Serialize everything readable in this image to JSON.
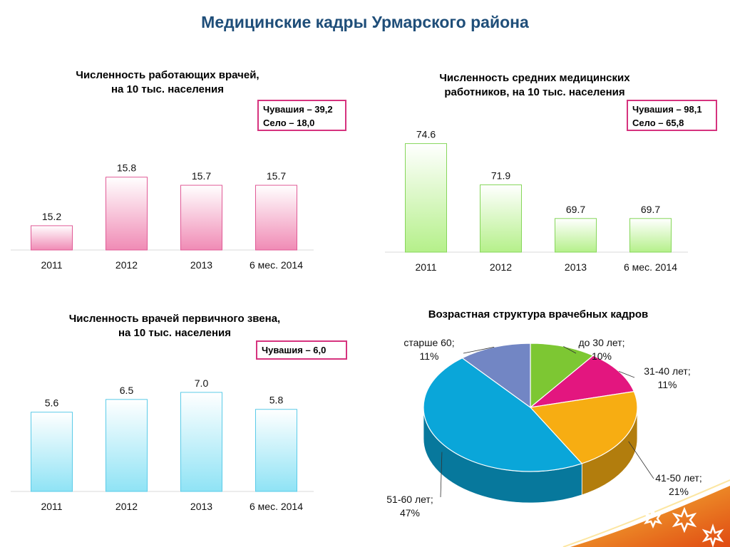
{
  "slide": {
    "title": "Медицинские кадры Урмарского района"
  },
  "colors": {
    "title": "#1f4e79",
    "pink_bar": "#f08bb5",
    "green_bar": "#b5f08a",
    "blue_bar": "#8fe3f5",
    "callout_border": "#d6337e",
    "swoosh": "#e87a1a"
  },
  "charts": {
    "doctors": {
      "title_line1": "Численность работающих врачей,",
      "title_line2": "на 10 тыс. населения",
      "callout_line1": "Чувашия – 39,2",
      "callout_line2": "Село – 18,0"
    },
    "nurses": {
      "title_line1": "Численность средних медицинских",
      "title_line2": "работников, на 10 тыс. населения",
      "callout_line1": "Чувашия – 98,1",
      "callout_line2": "Село – 65,8"
    },
    "primary": {
      "title_line1": "Численность врачей первичного звена,",
      "title_line2": "на 10 тыс. населения",
      "callout_line1": "Чувашия – 6,0"
    },
    "age": {
      "title": "Возрастная структура врачебных кадров"
    }
  },
  "chart_data": [
    {
      "type": "bar",
      "title": "Численность работающих врачей, на 10 тыс. населения",
      "categories": [
        "2011",
        "2012",
        "2013",
        "6 мес. 2014"
      ],
      "values": [
        15.2,
        15.8,
        15.7,
        15.7
      ],
      "value_labels": [
        "15.2",
        "15.8",
        "15.7",
        "15.7"
      ],
      "ylim": [
        14.9,
        16.0
      ]
    },
    {
      "type": "bar",
      "title": "Численность средних медицинских работников, на 10 тыс. населения",
      "categories": [
        "2011",
        "2012",
        "2013",
        "6 мес. 2014"
      ],
      "values": [
        74.6,
        71.9,
        69.7,
        69.7
      ],
      "value_labels": [
        "74.6",
        "71.9",
        "69.7",
        "69.7"
      ],
      "ylim": [
        67.5,
        75.0
      ]
    },
    {
      "type": "bar",
      "title": "Численность врачей первичного звена, на 10 тыс. населения",
      "categories": [
        "2011",
        "2012",
        "2013",
        "6 мес. 2014"
      ],
      "values": [
        5.6,
        6.5,
        7.0,
        5.8
      ],
      "value_labels": [
        "5.6",
        "6.5",
        "7.0",
        "5.8"
      ],
      "ylim": [
        0,
        8.0
      ]
    },
    {
      "type": "pie",
      "title": "Возрастная структура врачебных кадров",
      "categories": [
        "до 30 лет",
        "31-40 лет",
        "41-50 лет",
        "51-60 лет",
        "старше 60"
      ],
      "values": [
        10,
        11,
        21,
        47,
        11
      ],
      "labels": [
        "до 30 лет;|10%",
        "31-40 лет;|11%",
        "41-50 лет;|21%",
        "51-60 лет;|47%",
        "старше 60;|11%"
      ],
      "colors": [
        "#7dc733",
        "#e3167f",
        "#f7ad12",
        "#0aa6d9",
        "#7286c4"
      ]
    }
  ]
}
